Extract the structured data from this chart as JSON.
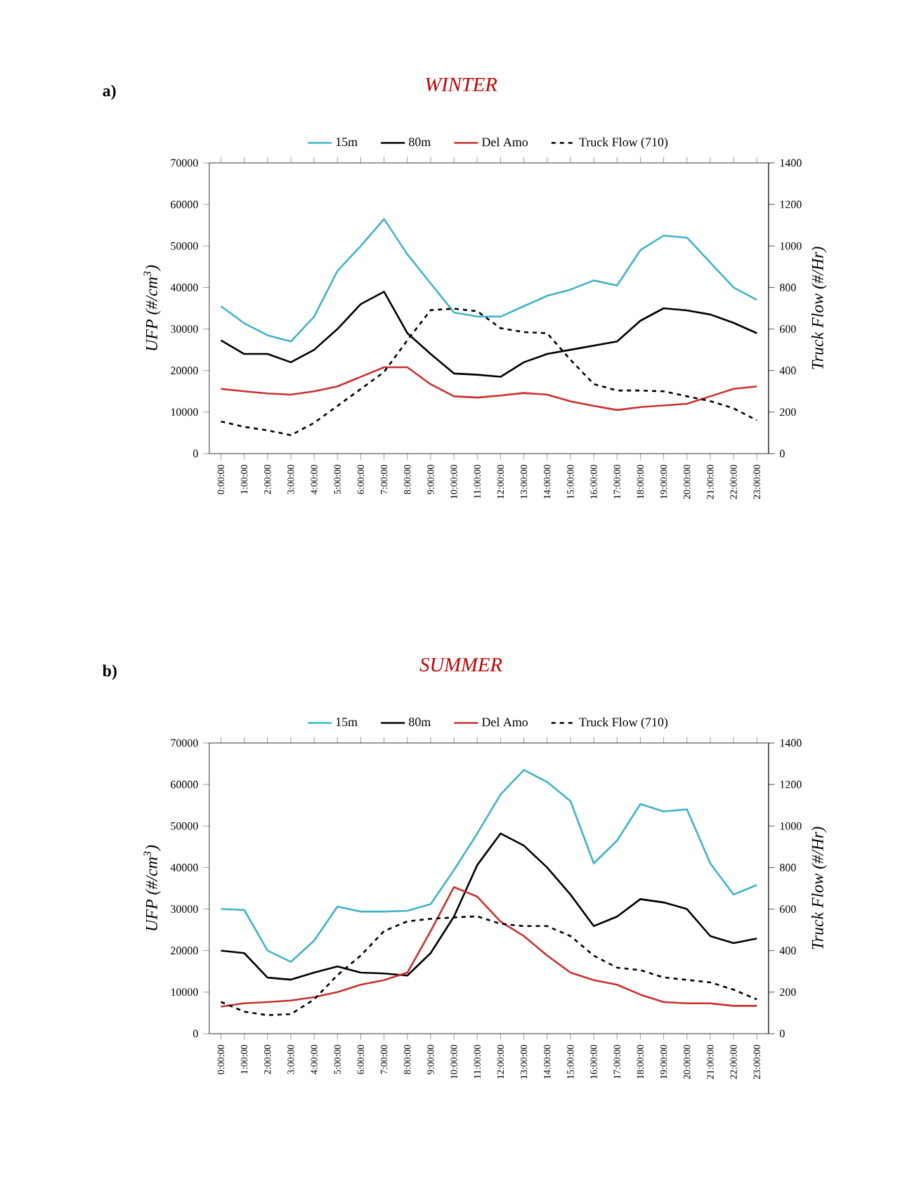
{
  "chart_data": [
    {
      "type": "line",
      "title": "WINTER",
      "annotations": [
        "a)"
      ],
      "ylabel": "UFP (#/cm$^{3}$)",
      "y2label": "Truck Flow (#/Hr)",
      "legend": "top",
      "categories": [
        "0:00:00",
        "1:00:00",
        "2:00:00",
        "3:00:00",
        "4:00:00",
        "5:00:00",
        "6:00:00",
        "7:00:00",
        "8:00:00",
        "9:00:00",
        "10:00:00",
        "11:00:00",
        "12:00:00",
        "13:00:00",
        "14:00:00",
        "15:00:00",
        "16:00:00",
        "17:00:00",
        "18:00:00",
        "19:00:00",
        "20:00:00",
        "21:00:00",
        "22:00:00",
        "23:00:00"
      ],
      "ylim": [
        0,
        70000
      ],
      "yticks": [
        0,
        10000,
        20000,
        30000,
        40000,
        50000,
        60000,
        70000
      ],
      "y2lim": [
        0,
        1400
      ],
      "y2ticks": [
        0,
        200,
        400,
        600,
        800,
        1000,
        1200,
        1400
      ],
      "series": [
        {
          "name": "15m",
          "color": "#3fb3c6",
          "values": [
            35500,
            31400,
            28500,
            27000,
            33000,
            44000,
            50000,
            56500,
            48000,
            41000,
            34000,
            33000,
            33000,
            35500,
            38000,
            39500,
            41700,
            40500,
            49000,
            52500,
            52000,
            46000,
            40000,
            37000
          ]
        },
        {
          "name": "80m",
          "color": "#000000",
          "values": [
            27300,
            24000,
            24000,
            22000,
            25000,
            30000,
            36000,
            39000,
            29000,
            24000,
            19300,
            19000,
            18500,
            22000,
            24000,
            25000,
            26000,
            27000,
            32000,
            35000,
            34500,
            33500,
            31500,
            29000
          ]
        },
        {
          "name": "Del Amo",
          "color": "#c8302f",
          "values": [
            15600,
            15000,
            14500,
            14200,
            15000,
            16200,
            18500,
            20800,
            20800,
            16700,
            13800,
            13500,
            14000,
            14600,
            14200,
            12600,
            11500,
            10500,
            11200,
            11600,
            12000,
            13800,
            15600,
            16200
          ]
        },
        {
          "name": "Truck Flow (710)",
          "color": "#000000",
          "axis": "y2",
          "line_style": "dashed",
          "values": [
            155,
            129,
            112,
            89,
            148,
            230,
            311,
            393,
            546,
            691,
            698,
            686,
            604,
            585,
            580,
            452,
            335,
            304,
            304,
            300,
            276,
            253,
            218,
            160
          ]
        }
      ]
    },
    {
      "type": "line",
      "title": "SUMMER",
      "annotations": [
        "b)"
      ],
      "ylabel": "UFP (#/cm$^{3}$)",
      "y2label": "Truck Flow (#/Hr)",
      "legend": "top",
      "categories": [
        "0:00:00",
        "1:00:00",
        "2:00:00",
        "3:00:00",
        "4:00:00",
        "5:00:00",
        "6:00:00",
        "7:00:00",
        "8:00:00",
        "9:00:00",
        "10:00:00",
        "11:00:00",
        "12:00:00",
        "13:00:00",
        "14:00:00",
        "15:00:00",
        "16:00:00",
        "17:00:00",
        "18:00:00",
        "19:00:00",
        "20:00:00",
        "21:00:00",
        "22:00:00",
        "23:00:00"
      ],
      "ylim": [
        0,
        70000
      ],
      "yticks": [
        0,
        10000,
        20000,
        30000,
        40000,
        50000,
        60000,
        70000
      ],
      "y2lim": [
        0,
        1400
      ],
      "y2ticks": [
        0,
        200,
        400,
        600,
        800,
        1000,
        1200,
        1400
      ],
      "series": [
        {
          "name": "15m",
          "color": "#3fb3c6",
          "values": [
            30000,
            29800,
            20000,
            17300,
            22400,
            30600,
            29400,
            29400,
            29600,
            31200,
            39400,
            48200,
            57600,
            63500,
            60600,
            56000,
            41000,
            46500,
            55300,
            53500,
            54000,
            41000,
            33500,
            35800
          ]
        },
        {
          "name": "80m",
          "color": "#000000",
          "values": [
            20000,
            19400,
            13500,
            13000,
            14700,
            16200,
            14700,
            14500,
            14000,
            19400,
            28200,
            40600,
            48200,
            45300,
            40000,
            33500,
            25900,
            28200,
            32400,
            31600,
            30000,
            23500,
            21800,
            22900
          ]
        },
        {
          "name": "Del Amo",
          "color": "#c8302f",
          "values": [
            6500,
            7300,
            7600,
            8000,
            8800,
            10000,
            11800,
            12900,
            14700,
            24700,
            35300,
            33000,
            27000,
            23500,
            18800,
            14700,
            12900,
            11800,
            9400,
            7600,
            7300,
            7300,
            6700,
            6700
          ]
        },
        {
          "name": "Truck Flow (710)",
          "color": "#000000",
          "axis": "y2",
          "line_style": "dashed",
          "values": [
            153,
            106,
            89,
            94,
            165,
            282,
            376,
            494,
            541,
            553,
            560,
            565,
            529,
            518,
            518,
            470,
            376,
            318,
            306,
            271,
            259,
            247,
            212,
            165
          ]
        }
      ]
    }
  ]
}
